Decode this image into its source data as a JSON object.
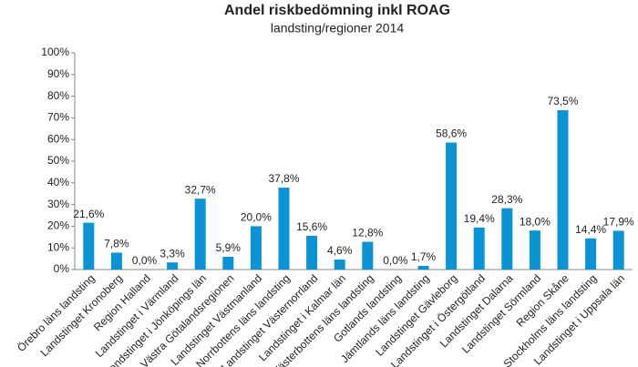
{
  "chart_data": {
    "type": "bar",
    "title": "Andel riskbedömning inkl ROAG",
    "subtitle": "landsting/regioner 2014",
    "categories": [
      "Örebro läns  landsting",
      "Landstinget Kronoberg",
      "Region Halland",
      "Landstinget i Värmland",
      "Landstinget i Jönköpings län",
      "Västra Götalandsregionen",
      "Landstinget Västmanland",
      "Norrbottens läns landsting",
      "Landstinget Västernorrland",
      "Landstinget i Kalmar län",
      "Västerbottens läns landsting",
      "Gotlands landsting",
      "Jämtlands läns landsting",
      "Landstinget Gävleborg",
      "Landstinget i Östergötland",
      "Landstinget Dalarna",
      "Landstinget Sörmland",
      "Region Skåne",
      "Stockholms läns landsting",
      "Landstinget i Uppsala län"
    ],
    "values": [
      21.6,
      7.8,
      0.0,
      3.3,
      32.7,
      5.9,
      20.0,
      37.8,
      15.6,
      4.6,
      12.8,
      0.0,
      1.7,
      58.6,
      19.4,
      28.3,
      18.0,
      73.5,
      14.4,
      17.9
    ],
    "value_labels": [
      "21,6%",
      "7,8%",
      "0,0%",
      "3,3%",
      "32,7%",
      "5,9%",
      "20,0%",
      "37,8%",
      "15,6%",
      "4,6%",
      "12,8%",
      "0,0%",
      "1,7%",
      "58,6%",
      "19,4%",
      "28,3%",
      "18,0%",
      "73,5%",
      "14,4%",
      "17,9%"
    ],
    "color": "#0a94d6",
    "ylim": [
      0,
      100
    ],
    "yticks": [
      {
        "value": 0,
        "label": "0%"
      },
      {
        "value": 10,
        "label": "10%"
      },
      {
        "value": 20,
        "label": "20%"
      },
      {
        "value": 30,
        "label": "30%"
      },
      {
        "value": 40,
        "label": "40%"
      },
      {
        "value": 50,
        "label": "50%"
      },
      {
        "value": 60,
        "label": "60%"
      },
      {
        "value": 70,
        "label": "70%"
      },
      {
        "value": 80,
        "label": "80%"
      },
      {
        "value": 90,
        "label": "90%"
      },
      {
        "value": 100,
        "label": "100%"
      }
    ],
    "grid": false
  }
}
